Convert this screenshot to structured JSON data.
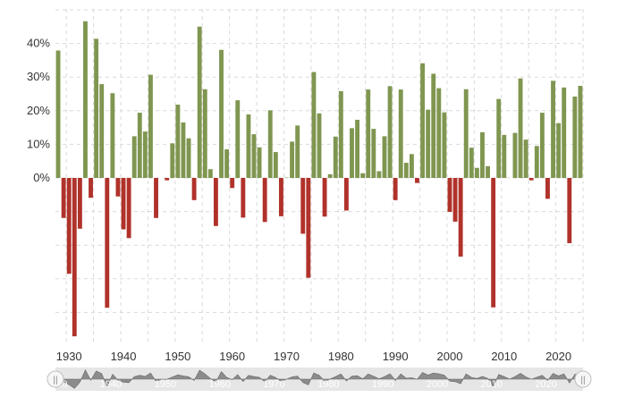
{
  "chart_data": {
    "type": "bar",
    "title": "",
    "xlabel": "",
    "ylabel": "",
    "x": [
      1928,
      1929,
      1930,
      1931,
      1932,
      1933,
      1934,
      1935,
      1936,
      1937,
      1938,
      1939,
      1940,
      1941,
      1942,
      1943,
      1944,
      1945,
      1946,
      1947,
      1948,
      1949,
      1950,
      1951,
      1952,
      1953,
      1954,
      1955,
      1956,
      1957,
      1958,
      1959,
      1960,
      1961,
      1962,
      1963,
      1964,
      1965,
      1966,
      1967,
      1968,
      1969,
      1970,
      1971,
      1972,
      1973,
      1974,
      1975,
      1976,
      1977,
      1978,
      1979,
      1980,
      1981,
      1982,
      1983,
      1984,
      1985,
      1986,
      1987,
      1988,
      1989,
      1990,
      1991,
      1992,
      1993,
      1994,
      1995,
      1996,
      1997,
      1998,
      1999,
      2000,
      2001,
      2002,
      2003,
      2004,
      2005,
      2006,
      2007,
      2008,
      2009,
      2010,
      2011,
      2012,
      2013,
      2014,
      2015,
      2016,
      2017,
      2018,
      2019,
      2020,
      2021,
      2022,
      2023,
      2024
    ],
    "values": [
      37.9,
      -11.9,
      -28.5,
      -47.1,
      -15.1,
      46.6,
      -5.9,
      41.4,
      27.9,
      -38.6,
      25.2,
      -5.5,
      -15.3,
      -17.9,
      12.4,
      19.4,
      13.8,
      30.7,
      -11.9,
      0.0,
      -0.7,
      10.3,
      21.8,
      16.5,
      11.8,
      -6.6,
      45.0,
      26.4,
      2.6,
      -14.3,
      38.1,
      8.5,
      -3.0,
      23.1,
      -11.8,
      18.9,
      13.0,
      9.1,
      -13.1,
      20.1,
      7.7,
      -11.4,
      0.1,
      10.8,
      15.6,
      -16.6,
      -29.7,
      31.5,
      19.2,
      -11.5,
      1.1,
      12.3,
      25.8,
      -9.7,
      14.8,
      17.3,
      1.4,
      26.3,
      14.6,
      2.0,
      12.4,
      27.3,
      -6.6,
      26.3,
      4.5,
      7.1,
      -1.5,
      34.1,
      20.3,
      31.0,
      26.7,
      19.5,
      -10.1,
      -13.0,
      -23.4,
      26.4,
      9.0,
      3.0,
      13.6,
      3.5,
      -38.5,
      23.5,
      12.8,
      0.0,
      13.4,
      29.6,
      11.4,
      -0.7,
      9.5,
      19.4,
      -6.2,
      28.9,
      16.3,
      26.9,
      -19.4,
      24.2,
      27.4
    ],
    "ylim": [
      -50,
      50
    ],
    "yticks": [
      "0%",
      "10%",
      "20%",
      "30%",
      "40%"
    ],
    "xticks": [
      "1930",
      "1940",
      "1950",
      "1960",
      "1970",
      "1980",
      "1990",
      "2000",
      "2010",
      "2020"
    ],
    "grid": true,
    "colors": {
      "positive": "#7f9650",
      "negative": "#b0322a"
    },
    "navigator": {
      "labels": [
        "1930",
        "1940",
        "1950",
        "1960",
        "1970",
        "1980",
        "1990",
        "2000",
        "2010",
        "2020"
      ],
      "handle_glyph": "||"
    }
  }
}
